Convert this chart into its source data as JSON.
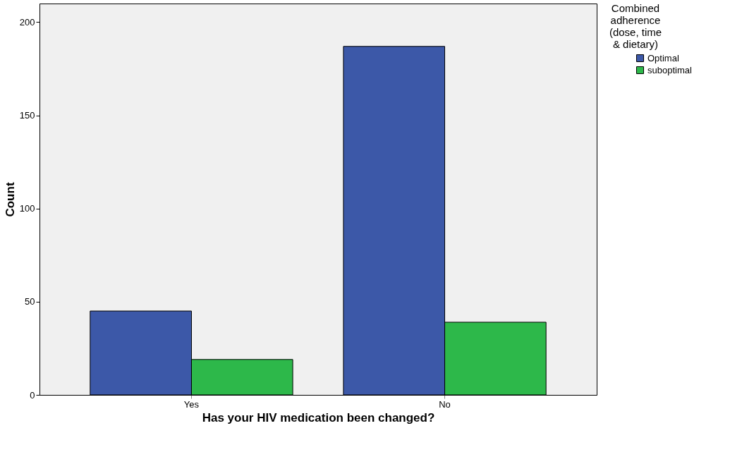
{
  "chart_data": {
    "type": "bar",
    "xlabel": "Has your HIV medication been changed?",
    "ylabel": "Count",
    "legend_title": "Combined adherence (dose, time & dietary)",
    "categories": [
      "Yes",
      "No"
    ],
    "series": [
      {
        "name": "Optimal",
        "color": "#3c58a8",
        "values": [
          45,
          187
        ]
      },
      {
        "name": "suboptimal",
        "color": "#2db84a",
        "values": [
          19,
          39
        ]
      }
    ],
    "ylim": [
      0,
      210
    ],
    "yticks": [
      0,
      50,
      100,
      150,
      200
    ],
    "grid": false,
    "legend": "top right"
  }
}
